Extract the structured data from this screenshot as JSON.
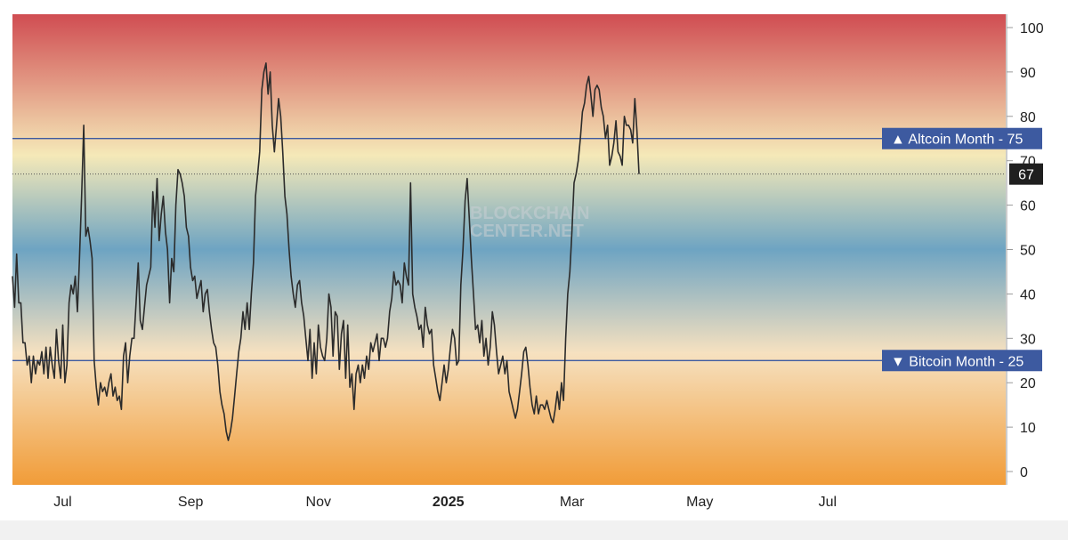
{
  "chart_data": {
    "type": "line",
    "watermark": [
      "BLOCKCHAIN",
      "CENTER.NET"
    ],
    "ylim": [
      -3,
      103
    ],
    "y_ticks": [
      0,
      10,
      20,
      30,
      40,
      50,
      60,
      70,
      80,
      90,
      100
    ],
    "x_ticks": [
      {
        "label": "Jul",
        "x": 10,
        "bold": false
      },
      {
        "label": "Sep",
        "x": 71,
        "bold": false
      },
      {
        "label": "Nov",
        "x": 132,
        "bold": false
      },
      {
        "label": "2025",
        "x": 194,
        "bold": true
      },
      {
        "label": "Mar",
        "x": 253,
        "bold": false
      },
      {
        "label": "May",
        "x": 314,
        "bold": false
      },
      {
        "label": "Jul",
        "x": 375,
        "bold": false
      }
    ],
    "xlim": [
      -14,
      460
    ],
    "current_value": 67,
    "levels": [
      {
        "name": "altcoin-month",
        "label": "Altcoin Month",
        "value": 75,
        "arrow": "▲",
        "color": "#3d5aa0"
      },
      {
        "name": "bitcoin-month",
        "label": "Bitcoin Month",
        "value": 25,
        "arrow": "▼",
        "color": "#3d5aa0"
      }
    ],
    "colors": {
      "line": "#2b2b2b",
      "top": "#d04d52",
      "upper": "#f5e9b8",
      "middle": "#6ea4c2",
      "lower": "#f6e1c0",
      "bottom": "#f19c38",
      "current_badge": "#1f1f1f"
    },
    "series": [
      {
        "values": [
          [
            -14,
            44
          ],
          [
            -13,
            37
          ],
          [
            -12,
            49
          ],
          [
            -11,
            38
          ],
          [
            -10,
            38
          ],
          [
            -9,
            29
          ],
          [
            -8,
            29
          ],
          [
            -7,
            24
          ],
          [
            -6,
            26
          ],
          [
            -5,
            20
          ],
          [
            -4,
            26
          ],
          [
            -3,
            22
          ],
          [
            -2,
            25
          ],
          [
            -1,
            24
          ],
          [
            0,
            27
          ],
          [
            1,
            22
          ],
          [
            2,
            28
          ],
          [
            3,
            21
          ],
          [
            4,
            28
          ],
          [
            5,
            24
          ],
          [
            6,
            21
          ],
          [
            7,
            32
          ],
          [
            8,
            25
          ],
          [
            9,
            21
          ],
          [
            10,
            33
          ],
          [
            11,
            20
          ],
          [
            12,
            24
          ],
          [
            13,
            38
          ],
          [
            14,
            42
          ],
          [
            15,
            40
          ],
          [
            16,
            44
          ],
          [
            17,
            36
          ],
          [
            18,
            48
          ],
          [
            19,
            62
          ],
          [
            20,
            78
          ],
          [
            21,
            53
          ],
          [
            22,
            55
          ],
          [
            23,
            52
          ],
          [
            24,
            48
          ],
          [
            25,
            25
          ],
          [
            26,
            19
          ],
          [
            27,
            15
          ],
          [
            28,
            20
          ],
          [
            29,
            18
          ],
          [
            30,
            19
          ],
          [
            31,
            17
          ],
          [
            32,
            20
          ],
          [
            33,
            22
          ],
          [
            34,
            17
          ],
          [
            35,
            19
          ],
          [
            36,
            16
          ],
          [
            37,
            17
          ],
          [
            38,
            14
          ],
          [
            39,
            26
          ],
          [
            40,
            29
          ],
          [
            41,
            20
          ],
          [
            42,
            26
          ],
          [
            43,
            30
          ],
          [
            44,
            30
          ],
          [
            45,
            38
          ],
          [
            46,
            47
          ],
          [
            47,
            34
          ],
          [
            48,
            32
          ],
          [
            49,
            37
          ],
          [
            50,
            42
          ],
          [
            52,
            46
          ],
          [
            53,
            63
          ],
          [
            54,
            55
          ],
          [
            55,
            66
          ],
          [
            56,
            52
          ],
          [
            57,
            58
          ],
          [
            58,
            62
          ],
          [
            59,
            54
          ],
          [
            60,
            50
          ],
          [
            61,
            38
          ],
          [
            62,
            48
          ],
          [
            63,
            45
          ],
          [
            64,
            60
          ],
          [
            65,
            68
          ],
          [
            66,
            67
          ],
          [
            67,
            65
          ],
          [
            68,
            62
          ],
          [
            69,
            55
          ],
          [
            70,
            53
          ],
          [
            71,
            46
          ],
          [
            72,
            43
          ],
          [
            73,
            44
          ],
          [
            74,
            39
          ],
          [
            75,
            41
          ],
          [
            76,
            43
          ],
          [
            77,
            36
          ],
          [
            78,
            40
          ],
          [
            79,
            41
          ],
          [
            80,
            36
          ],
          [
            81,
            32
          ],
          [
            82,
            29
          ],
          [
            83,
            28
          ],
          [
            84,
            24
          ],
          [
            85,
            18
          ],
          [
            86,
            15
          ],
          [
            87,
            13
          ],
          [
            88,
            9
          ],
          [
            89,
            7
          ],
          [
            90,
            9
          ],
          [
            91,
            12
          ],
          [
            92,
            17
          ],
          [
            93,
            22
          ],
          [
            94,
            27
          ],
          [
            95,
            30
          ],
          [
            96,
            36
          ],
          [
            97,
            32
          ],
          [
            98,
            38
          ],
          [
            99,
            32
          ],
          [
            100,
            40
          ],
          [
            101,
            47
          ],
          [
            102,
            62
          ],
          [
            103,
            67
          ],
          [
            104,
            72
          ],
          [
            105,
            86
          ],
          [
            106,
            90
          ],
          [
            107,
            92
          ],
          [
            108,
            85
          ],
          [
            109,
            90
          ],
          [
            110,
            78
          ],
          [
            111,
            72
          ],
          [
            112,
            78
          ],
          [
            113,
            84
          ],
          [
            114,
            80
          ],
          [
            115,
            72
          ],
          [
            116,
            62
          ],
          [
            117,
            58
          ],
          [
            118,
            50
          ],
          [
            119,
            44
          ],
          [
            120,
            40
          ],
          [
            121,
            37
          ],
          [
            122,
            42
          ],
          [
            123,
            43
          ],
          [
            124,
            38
          ],
          [
            125,
            35
          ],
          [
            126,
            30
          ],
          [
            127,
            25
          ],
          [
            128,
            32
          ],
          [
            129,
            21
          ],
          [
            130,
            29
          ],
          [
            131,
            22
          ],
          [
            132,
            33
          ],
          [
            133,
            28
          ],
          [
            134,
            26
          ],
          [
            135,
            25
          ],
          [
            136,
            30
          ],
          [
            137,
            40
          ],
          [
            138,
            37
          ],
          [
            139,
            26
          ],
          [
            140,
            36
          ],
          [
            141,
            35
          ],
          [
            142,
            23
          ],
          [
            143,
            31
          ],
          [
            144,
            34
          ],
          [
            145,
            21
          ],
          [
            146,
            33
          ],
          [
            147,
            19
          ],
          [
            148,
            22
          ],
          [
            149,
            14
          ],
          [
            150,
            22
          ],
          [
            151,
            24
          ],
          [
            152,
            20
          ],
          [
            153,
            24
          ],
          [
            154,
            21
          ],
          [
            155,
            26
          ],
          [
            156,
            23
          ],
          [
            157,
            29
          ],
          [
            158,
            27
          ],
          [
            160,
            31
          ],
          [
            161,
            25
          ],
          [
            162,
            30
          ],
          [
            163,
            30
          ],
          [
            164,
            28
          ],
          [
            165,
            30
          ],
          [
            166,
            36
          ],
          [
            167,
            39
          ],
          [
            168,
            45
          ],
          [
            169,
            42
          ],
          [
            170,
            43
          ],
          [
            171,
            42
          ],
          [
            172,
            38
          ],
          [
            173,
            47
          ],
          [
            174,
            44
          ],
          [
            175,
            42
          ],
          [
            176,
            65
          ],
          [
            177,
            40
          ],
          [
            178,
            37
          ],
          [
            179,
            35
          ],
          [
            180,
            32
          ],
          [
            181,
            33
          ],
          [
            182,
            28
          ],
          [
            183,
            37
          ],
          [
            184,
            33
          ],
          [
            185,
            31
          ],
          [
            186,
            32
          ],
          [
            187,
            24
          ],
          [
            188,
            21
          ],
          [
            189,
            18
          ],
          [
            190,
            16
          ],
          [
            191,
            20
          ],
          [
            192,
            24
          ],
          [
            193,
            20
          ],
          [
            194,
            23
          ],
          [
            195,
            28
          ],
          [
            196,
            32
          ],
          [
            197,
            30
          ],
          [
            198,
            24
          ],
          [
            199,
            25
          ],
          [
            200,
            42
          ],
          [
            201,
            50
          ],
          [
            202,
            61
          ],
          [
            203,
            66
          ],
          [
            204,
            57
          ],
          [
            205,
            48
          ],
          [
            206,
            40
          ],
          [
            207,
            32
          ],
          [
            208,
            33
          ],
          [
            209,
            29
          ],
          [
            210,
            34
          ],
          [
            211,
            26
          ],
          [
            212,
            30
          ],
          [
            213,
            24
          ],
          [
            214,
            28
          ],
          [
            215,
            36
          ],
          [
            216,
            33
          ],
          [
            217,
            27
          ],
          [
            218,
            22
          ],
          [
            219,
            24
          ],
          [
            220,
            26
          ],
          [
            221,
            22
          ],
          [
            222,
            25
          ],
          [
            223,
            18
          ],
          [
            224,
            16
          ],
          [
            225,
            14
          ],
          [
            226,
            12
          ],
          [
            227,
            14
          ],
          [
            228,
            18
          ],
          [
            229,
            22
          ],
          [
            230,
            27
          ],
          [
            231,
            28
          ],
          [
            232,
            24
          ],
          [
            233,
            19
          ],
          [
            234,
            15
          ],
          [
            235,
            13
          ],
          [
            236,
            17
          ],
          [
            237,
            13
          ],
          [
            238,
            15
          ],
          [
            239,
            15
          ],
          [
            240,
            14
          ],
          [
            241,
            16
          ],
          [
            242,
            14
          ],
          [
            243,
            12
          ],
          [
            244,
            11
          ],
          [
            245,
            14
          ],
          [
            246,
            18
          ],
          [
            247,
            14
          ],
          [
            248,
            20
          ],
          [
            249,
            16
          ],
          [
            250,
            30
          ],
          [
            251,
            40
          ],
          [
            252,
            45
          ],
          [
            253,
            54
          ],
          [
            254,
            65
          ],
          [
            255,
            67
          ],
          [
            256,
            70
          ],
          [
            257,
            75
          ],
          [
            258,
            81
          ],
          [
            259,
            83
          ],
          [
            260,
            87
          ],
          [
            261,
            89
          ],
          [
            262,
            85
          ],
          [
            263,
            80
          ],
          [
            264,
            86
          ],
          [
            265,
            87
          ],
          [
            266,
            86
          ],
          [
            267,
            82
          ],
          [
            268,
            80
          ],
          [
            269,
            75
          ],
          [
            270,
            78
          ],
          [
            271,
            69
          ],
          [
            272,
            71
          ],
          [
            273,
            74
          ],
          [
            274,
            79
          ],
          [
            275,
            72
          ],
          [
            276,
            71
          ],
          [
            277,
            69
          ],
          [
            278,
            80
          ],
          [
            279,
            78
          ],
          [
            280,
            78
          ],
          [
            281,
            77
          ],
          [
            282,
            74
          ],
          [
            283,
            84
          ],
          [
            284,
            77
          ],
          [
            285,
            67
          ]
        ]
      }
    ]
  }
}
